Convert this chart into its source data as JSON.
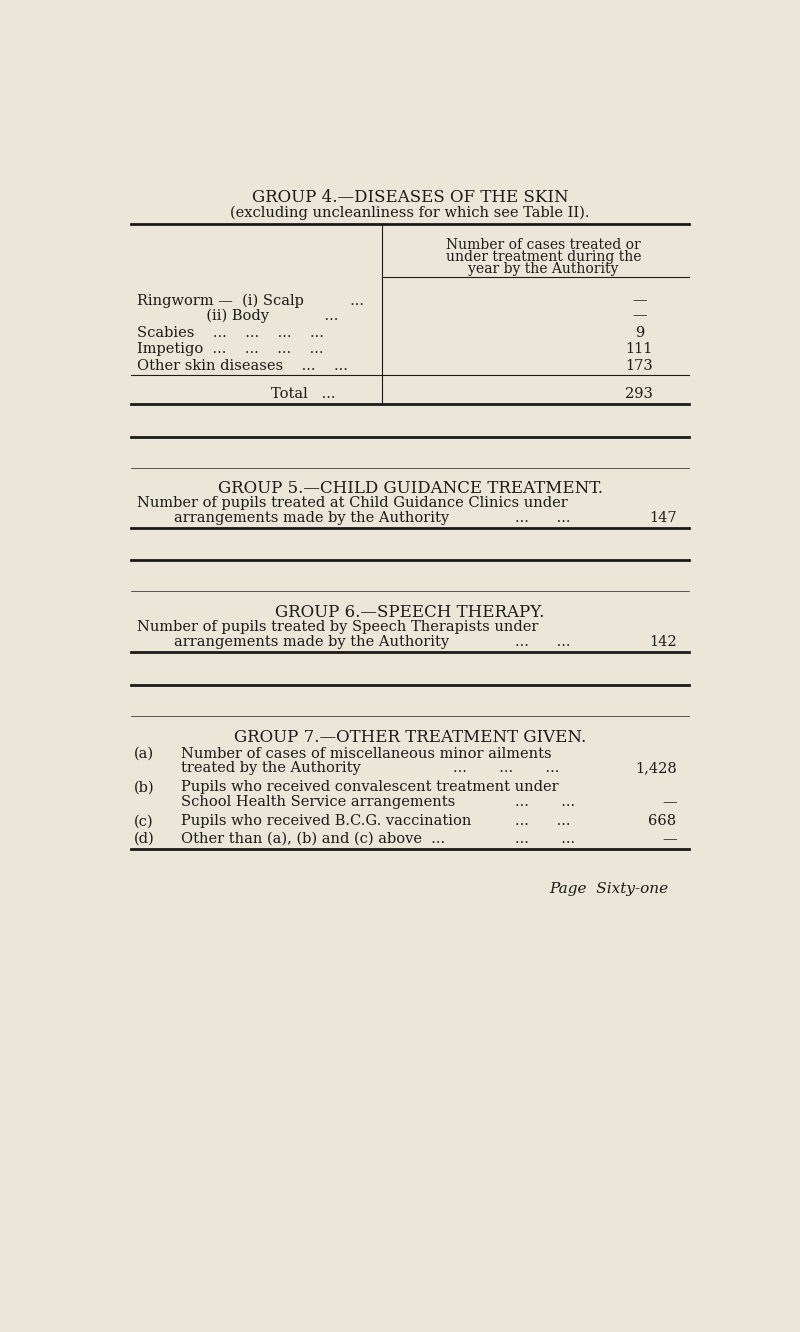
{
  "bg_color": "#ece6d8",
  "text_color": "#1a1a1a",
  "page_width": 8.0,
  "page_height": 13.32,
  "group4_title1": "GROUP 4.—DISEASES OF THE SKIN",
  "group4_title2": "(excluding uncleanliness for which see Table II).",
  "group4_col_hdr1": "Number of cases treated or",
  "group4_col_hdr2": "under treatment during the",
  "group4_col_hdr3": "year by the Authority",
  "row_label1": "Ringworm —  (i) Scalp          ...",
  "row_label2": "               (ii) Body            ...",
  "row_label3": "Scabies    ...    ...    ...    ...",
  "row_label4": "Impetigo  ...    ...    ...    ...",
  "row_label5": "Other skin diseases    ...    ...",
  "row_val1": "—",
  "row_val2": "—",
  "row_val3": "9",
  "row_val4": "111",
  "row_val5": "173",
  "total_label": "Total   ...",
  "total_value": "293",
  "group5_title": "GROUP 5.—CHILD GUIDANCE TREATMENT.",
  "group5_line1": "Number of pupils treated at Child Guidance Clinics under",
  "group5_line2": "arrangements made by the Authority",
  "group5_dots": "...      ...",
  "group5_value": "147",
  "group6_title": "GROUP 6.—SPEECH THERAPY.",
  "group6_line1": "Number of pupils treated by Speech Therapists under",
  "group6_line2": "arrangements made by the Authority",
  "group6_dots": "...      ...",
  "group6_value": "142",
  "group7_title": "GROUP 7.—OTHER TREATMENT GIVEN.",
  "g7a_label": "(a)",
  "g7a_line1": "Number of cases of miscellaneous minor ailments",
  "g7a_line2": "treated by the Authority",
  "g7a_dots": "...       ...       ...",
  "g7a_value": "1,428",
  "g7b_label": "(b)",
  "g7b_line1": "Pupils who received convalescent treatment under",
  "g7b_line2": "School Health Service arrangements",
  "g7b_dots": "...       ...",
  "g7b_value": "—",
  "g7c_label": "(c)",
  "g7c_line": "Pupils who received B.C.G. vaccination",
  "g7c_dots": "...      ...",
  "g7c_value": "668",
  "g7d_label": "(d)",
  "g7d_line": "Other than (a), (b) and (c) above  ...",
  "g7d_dots": "...       ...",
  "g7d_value": "—",
  "page_footer": "Page  Sixty-one"
}
